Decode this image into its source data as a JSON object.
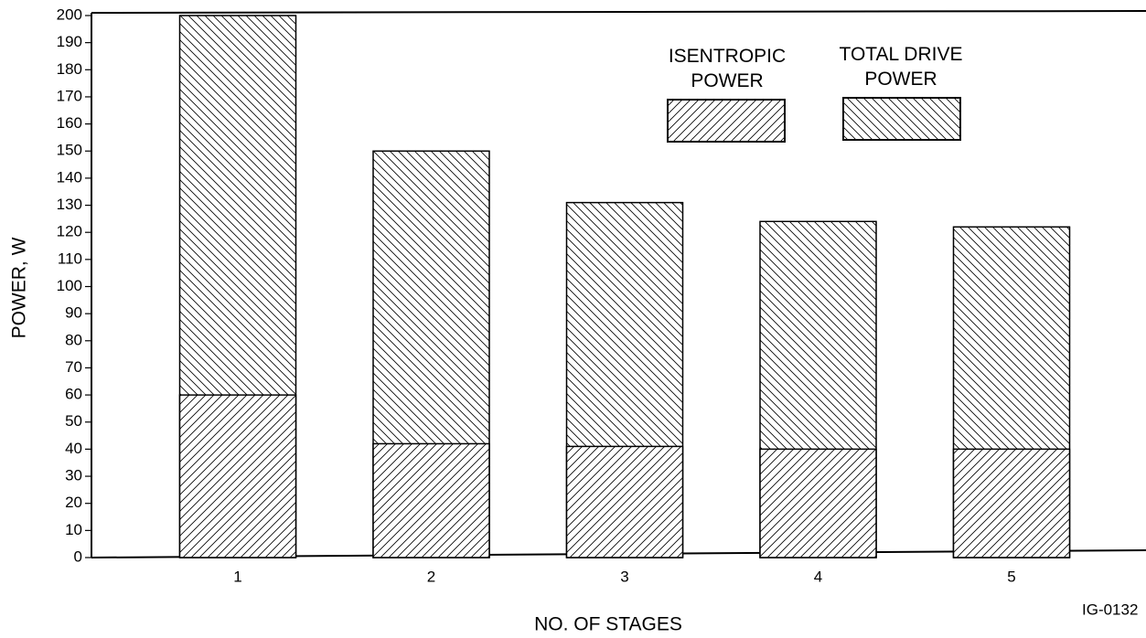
{
  "chart_data": {
    "type": "bar",
    "categories": [
      "1",
      "2",
      "3",
      "4",
      "5"
    ],
    "series": [
      {
        "name": "TOTAL DRIVE POWER",
        "color": "#000000",
        "values": [
          200,
          150,
          131,
          124,
          122
        ]
      },
      {
        "name": "ISENTROPIC POWER",
        "color": "#000000",
        "values": [
          60,
          42,
          41,
          40,
          40
        ]
      }
    ],
    "xlabel": "NO. OF STAGES",
    "ylabel": "POWER, W",
    "ylim": [
      0,
      200
    ],
    "yticks": [
      0,
      10,
      20,
      30,
      40,
      50,
      60,
      70,
      80,
      90,
      100,
      110,
      120,
      130,
      140,
      150,
      160,
      170,
      180,
      190,
      200
    ],
    "annotation": "IG-0132"
  }
}
